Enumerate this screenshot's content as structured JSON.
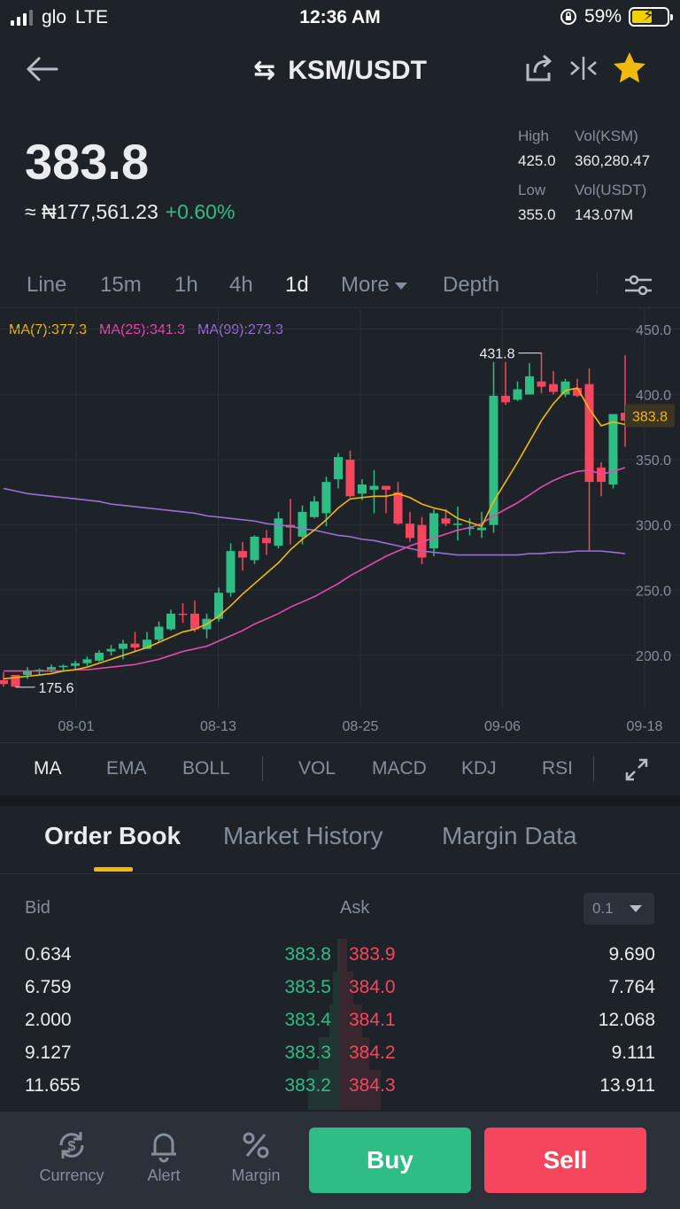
{
  "status_bar": {
    "carrier": "glo",
    "network": "LTE",
    "time": "12:36 AM",
    "battery": "59%"
  },
  "header": {
    "pair": "KSM/USDT",
    "swap_icon": "⇆"
  },
  "ticker": {
    "last_price": "383.8",
    "fiat_value": "≈ ₦177,561.23",
    "change": "+0.60%",
    "high_label": "High",
    "high": "425.0",
    "low_label": "Low",
    "low": "355.0",
    "vol_base_label": "Vol(KSM)",
    "vol_base": "360,280.47",
    "vol_quote_label": "Vol(USDT)",
    "vol_quote": "143.07M"
  },
  "timeframes": {
    "items": [
      "Line",
      "15m",
      "1h",
      "4h",
      "1d",
      "More",
      "Depth"
    ],
    "active": "1d"
  },
  "chart_data": {
    "type": "candlestick",
    "symbol": "KSM/USDT",
    "interval": "1d",
    "ma_legend": {
      "ma7": "MA(7):377.3",
      "ma25": "MA(25):341.3",
      "ma99": "MA(99):273.3"
    },
    "colors": {
      "up": "#2ebd85",
      "down": "#f6465d",
      "ma7": "#f0b90b",
      "ma25": "#e649b0",
      "ma99": "#9b6fd6",
      "last_price": "#f0b90b"
    },
    "y_ticks": [
      "450.0",
      "400.0",
      "350.0",
      "300.0",
      "250.0",
      "200.0"
    ],
    "ylim": [
      166,
      458
    ],
    "x_ticks": [
      "08-01",
      "08-13",
      "08-25",
      "09-06",
      "09-18"
    ],
    "last_price_label": "383.8",
    "high_marker": "431.8",
    "low_marker": "175.6",
    "candles": [
      [
        181,
        187,
        178,
        176
      ],
      [
        185,
        185,
        176,
        175.6
      ],
      [
        185,
        191,
        188,
        182
      ],
      [
        188,
        190,
        189,
        185
      ],
      [
        189,
        193,
        191,
        187
      ],
      [
        191,
        193,
        192,
        188
      ],
      [
        192,
        196,
        194,
        189
      ],
      [
        194,
        199,
        197,
        192
      ],
      [
        196,
        204,
        202,
        195
      ],
      [
        203,
        208,
        205,
        200
      ],
      [
        205,
        212,
        209,
        197
      ],
      [
        209,
        218,
        206,
        203
      ],
      [
        205,
        218,
        212,
        205
      ],
      [
        212,
        226,
        222,
        210
      ],
      [
        220,
        235,
        232,
        219
      ],
      [
        232,
        240,
        231,
        225
      ],
      [
        232,
        242,
        220,
        218
      ],
      [
        220,
        232,
        228,
        213
      ],
      [
        228,
        252,
        248,
        226
      ],
      [
        248,
        286,
        280,
        245
      ],
      [
        280,
        287,
        275,
        265
      ],
      [
        273,
        292,
        291,
        270
      ],
      [
        290,
        296,
        286,
        277
      ],
      [
        284,
        310,
        305,
        282
      ],
      [
        300,
        320,
        298,
        285
      ],
      [
        291,
        315,
        310,
        285
      ],
      [
        306,
        322,
        318,
        305
      ],
      [
        309,
        337,
        333,
        299
      ],
      [
        335,
        355,
        352,
        328
      ],
      [
        350,
        357,
        322,
        321
      ],
      [
        324,
        335,
        331,
        319
      ],
      [
        327,
        342,
        330,
        309
      ],
      [
        330,
        330,
        327,
        309
      ],
      [
        325,
        333,
        301,
        300
      ],
      [
        301,
        310,
        290,
        287
      ],
      [
        300,
        306,
        275,
        270
      ],
      [
        282,
        312,
        309,
        276
      ],
      [
        305,
        312,
        301,
        299
      ],
      [
        301,
        314,
        301,
        288
      ],
      [
        298,
        305,
        298,
        292
      ],
      [
        296,
        310,
        298,
        290
      ],
      [
        300,
        425,
        399,
        294
      ],
      [
        399,
        425,
        394,
        392
      ],
      [
        396,
        410,
        404,
        395
      ],
      [
        400,
        424,
        414,
        400
      ],
      [
        410,
        432,
        406,
        401
      ],
      [
        408,
        418,
        402,
        400
      ],
      [
        400,
        412,
        410,
        398
      ],
      [
        405,
        412,
        399,
        398
      ],
      [
        408,
        420,
        333,
        280
      ],
      [
        344,
        348,
        333,
        322
      ],
      [
        331,
        380,
        385,
        328
      ],
      [
        386,
        430,
        380,
        360
      ]
    ],
    "ma7": [
      182,
      183,
      184,
      185,
      186,
      188,
      189,
      191,
      194,
      197,
      200,
      203,
      206,
      210,
      214,
      218,
      220,
      224,
      230,
      238,
      247,
      255,
      263,
      271,
      281,
      289,
      296,
      304,
      313,
      320,
      321,
      322,
      322,
      324,
      321,
      316,
      313,
      311,
      305,
      302,
      299,
      318,
      333,
      348,
      364,
      380,
      393,
      403,
      405,
      389,
      376,
      379,
      377
    ],
    "ma25": [
      188,
      188,
      188,
      188,
      188,
      188,
      189,
      189,
      190,
      191,
      192,
      193,
      195,
      197,
      200,
      203,
      205,
      207,
      211,
      215,
      219,
      224,
      228,
      232,
      237,
      241,
      245,
      250,
      255,
      261,
      266,
      271,
      276,
      280,
      284,
      287,
      290,
      293,
      296,
      298,
      301,
      307,
      312,
      317,
      323,
      329,
      334,
      338,
      341,
      342,
      339,
      341,
      344
    ],
    "ma99": [
      328,
      326,
      324,
      323,
      322,
      321,
      320,
      319,
      318,
      316,
      315,
      314,
      313,
      312,
      311,
      310,
      309,
      307,
      306,
      305,
      304,
      303,
      301,
      300,
      299,
      297,
      296,
      294,
      292,
      291,
      289,
      288,
      286,
      284,
      282,
      280,
      279,
      278,
      277,
      277,
      277,
      277,
      277,
      277,
      278,
      278,
      279,
      279,
      280,
      280,
      280,
      279,
      278
    ]
  },
  "indicators": {
    "items": [
      "MA",
      "EMA",
      "BOLL",
      "VOL",
      "MACD",
      "KDJ",
      "RSI"
    ],
    "active": "MA"
  },
  "tabs": {
    "items": [
      "Order Book",
      "Market History",
      "Margin Data"
    ],
    "active": "Order Book"
  },
  "order_book": {
    "bid_label": "Bid",
    "ask_label": "Ask",
    "precision": "0.1",
    "rows": [
      {
        "bid_qty": "0.634",
        "bid_price": "383.8",
        "ask_price": "383.9",
        "ask_qty": "9.690"
      },
      {
        "bid_qty": "6.759",
        "bid_price": "383.5",
        "ask_price": "384.0",
        "ask_qty": "7.764"
      },
      {
        "bid_qty": "2.000",
        "bid_price": "383.4",
        "ask_price": "384.1",
        "ask_qty": "12.068"
      },
      {
        "bid_qty": "9.127",
        "bid_price": "383.3",
        "ask_price": "384.2",
        "ask_qty": "9.111"
      },
      {
        "bid_qty": "11.655",
        "bid_price": "383.2",
        "ask_price": "384.3",
        "ask_qty": "13.911"
      }
    ]
  },
  "bottom_bar": {
    "currency": "Currency",
    "alert": "Alert",
    "margin": "Margin",
    "buy": "Buy",
    "sell": "Sell"
  }
}
